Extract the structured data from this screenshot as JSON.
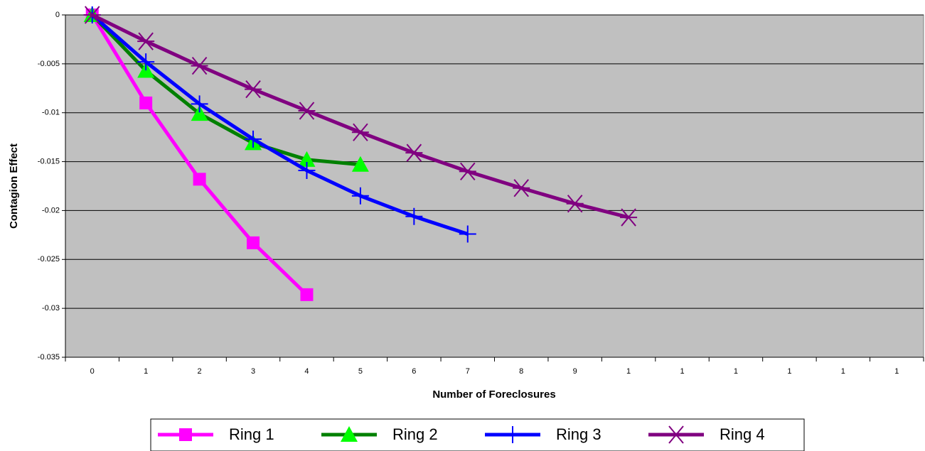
{
  "chart_data": {
    "type": "line",
    "x_label": "Number of Foreclosures",
    "y_label": "Contagion Effect",
    "categories": [
      "0",
      "1",
      "2",
      "3",
      "4",
      "5",
      "6",
      "7",
      "8",
      "9",
      "1",
      "1",
      "1",
      "1",
      "1",
      "1"
    ],
    "ylim": [
      -0.035,
      0
    ],
    "yticks": [
      0,
      -0.005,
      -0.01,
      -0.015,
      -0.02,
      -0.025,
      -0.03,
      -0.035
    ],
    "grid": true,
    "legend": "bottom",
    "series": [
      {
        "name": "Ring 1",
        "color": "#ff00ff",
        "marker_color": "#ff00ff",
        "marker": "square",
        "values": [
          0,
          -0.009,
          -0.0168,
          -0.0233,
          -0.0286,
          null,
          null,
          null,
          null,
          null,
          null,
          null,
          null,
          null,
          null,
          null
        ]
      },
      {
        "name": "Ring 2",
        "color": "#008000",
        "marker_color": "#00ff00",
        "marker": "triangle",
        "values": [
          0,
          -0.0057,
          -0.0101,
          -0.0131,
          -0.0148,
          -0.0153,
          null,
          null,
          null,
          null,
          null,
          null,
          null,
          null,
          null,
          null
        ]
      },
      {
        "name": "Ring 3",
        "color": "#0000ff",
        "marker_color": "#0000ff",
        "marker": "plus",
        "values": [
          0,
          -0.0048,
          -0.0091,
          -0.0127,
          -0.0159,
          -0.0185,
          -0.0206,
          -0.0224,
          null,
          null,
          null,
          null,
          null,
          null,
          null,
          null
        ]
      },
      {
        "name": "Ring 4",
        "color": "#800080",
        "marker_color": "#800080",
        "marker": "asterisk",
        "values": [
          0,
          -0.0027,
          -0.0052,
          -0.0076,
          -0.0098,
          -0.012,
          -0.0141,
          -0.016,
          -0.0177,
          -0.0193,
          -0.0207,
          null,
          null,
          null,
          null,
          null
        ]
      }
    ]
  }
}
